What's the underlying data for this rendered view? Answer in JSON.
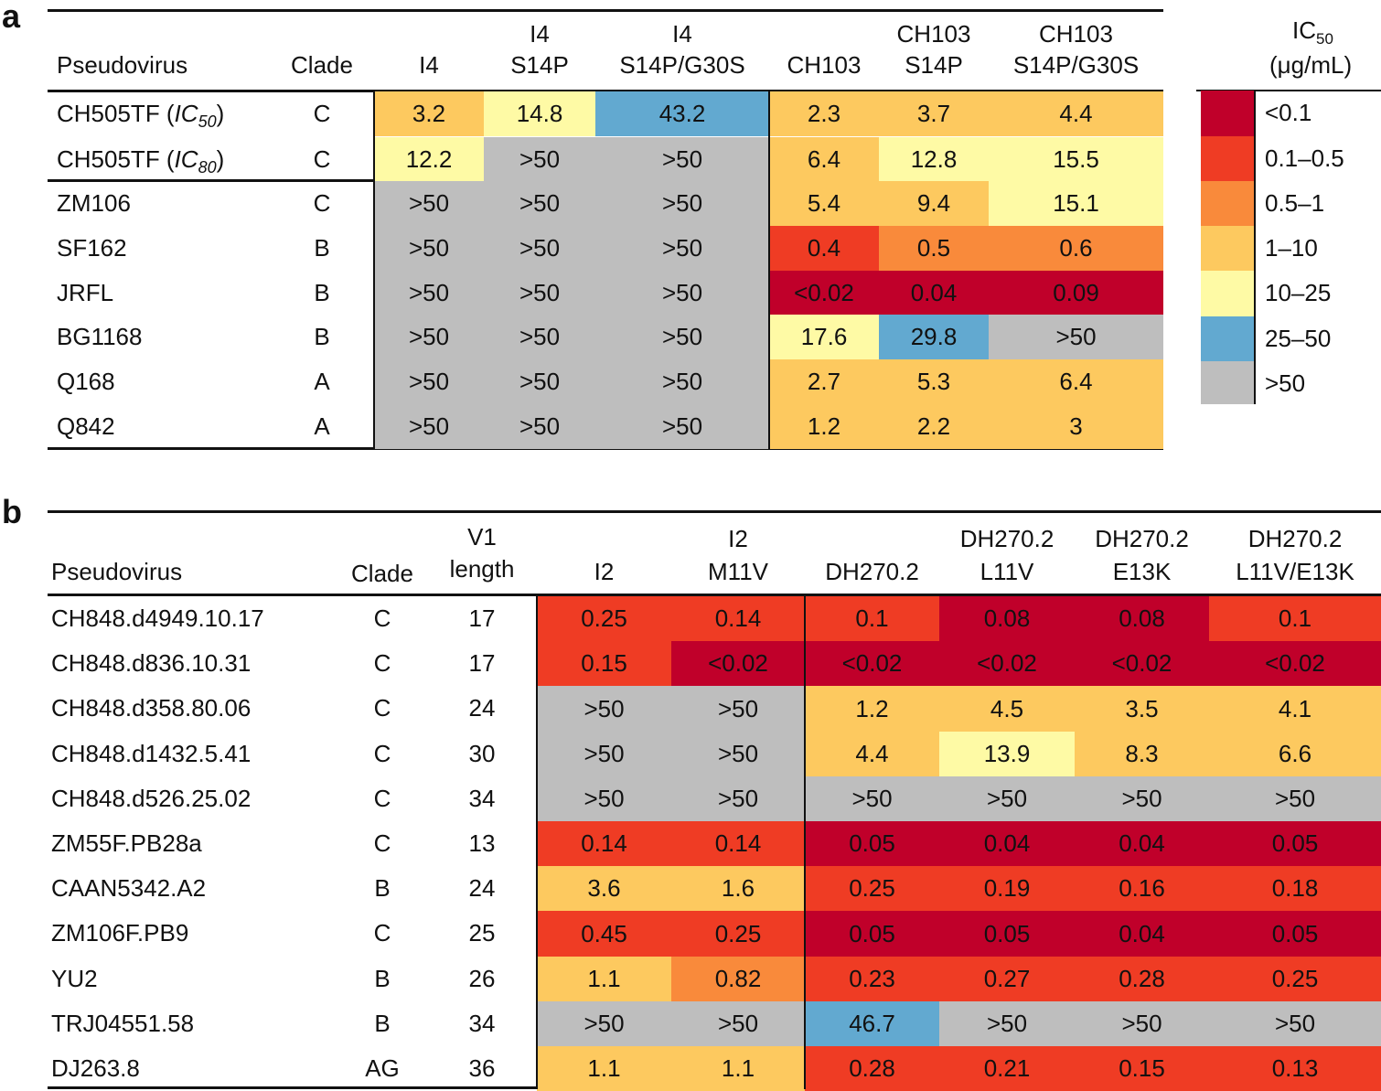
{
  "colors": {
    "<0.1": "#c0002a",
    "0.1–0.5": "#ef3c24",
    "0.5–1": "#f98a3b",
    "1–10": "#fdc95f",
    "10–25": "#fefaa5",
    "25–50": "#62a9d0",
    ">50": "#bebebe"
  },
  "panel_a": {
    "label": "a",
    "headers": {
      "pseudovirus": "Pseudovirus",
      "clade": "Clade",
      "antibodies": [
        {
          "line1": "",
          "line2": "I4"
        },
        {
          "line1": "I4",
          "line2": "S14P"
        },
        {
          "line1": "I4",
          "line2": "S14P/G30S"
        },
        {
          "line1": "",
          "line2": "CH103"
        },
        {
          "line1": "CH103",
          "line2": "S14P"
        },
        {
          "line1": "CH103",
          "line2": "S14P/G30S"
        }
      ]
    },
    "rows": [
      {
        "name": "CH505TF (",
        "name_italic": "IC",
        "name_sub": "50",
        "name_end": ")",
        "clade": "C",
        "values": [
          "3.2",
          "14.8",
          "43.2",
          "2.3",
          "3.7",
          "4.4"
        ],
        "bins": [
          "1–10",
          "10–25",
          "25–50",
          "1–10",
          "1–10",
          "1–10"
        ]
      },
      {
        "name": "CH505TF (",
        "name_italic": "IC",
        "name_sub": "80",
        "name_end": ")",
        "clade": "C",
        "values": [
          "12.2",
          ">50",
          ">50",
          "6.4",
          "12.8",
          "15.5"
        ],
        "bins": [
          "10–25",
          ">50",
          ">50",
          "1–10",
          "10–25",
          "10–25"
        ]
      },
      {
        "name": "ZM106",
        "clade": "C",
        "values": [
          ">50",
          ">50",
          ">50",
          "5.4",
          "9.4",
          "15.1"
        ],
        "bins": [
          ">50",
          ">50",
          ">50",
          "1–10",
          "1–10",
          "10–25"
        ]
      },
      {
        "name": "SF162",
        "clade": "B",
        "values": [
          ">50",
          ">50",
          ">50",
          "0.4",
          "0.5",
          "0.6"
        ],
        "bins": [
          ">50",
          ">50",
          ">50",
          "0.1–0.5",
          "0.5–1",
          "0.5–1"
        ]
      },
      {
        "name": "JRFL",
        "clade": "B",
        "values": [
          ">50",
          ">50",
          ">50",
          "<0.02",
          "0.04",
          "0.09"
        ],
        "bins": [
          ">50",
          ">50",
          ">50",
          "<0.1",
          "<0.1",
          "<0.1"
        ]
      },
      {
        "name": "BG1168",
        "clade": "B",
        "values": [
          ">50",
          ">50",
          ">50",
          "17.6",
          "29.8",
          ">50"
        ],
        "bins": [
          ">50",
          ">50",
          ">50",
          "10–25",
          "25–50",
          ">50"
        ]
      },
      {
        "name": "Q168",
        "clade": "A",
        "values": [
          ">50",
          ">50",
          ">50",
          "2.7",
          "5.3",
          "6.4"
        ],
        "bins": [
          ">50",
          ">50",
          ">50",
          "1–10",
          "1–10",
          "1–10"
        ]
      },
      {
        "name": "Q842",
        "clade": "A",
        "values": [
          ">50",
          ">50",
          ">50",
          "1.2",
          "2.2",
          "3"
        ],
        "bins": [
          ">50",
          ">50",
          ">50",
          "1–10",
          "1–10",
          "1–10"
        ]
      }
    ]
  },
  "legend": {
    "title_main": "IC",
    "title_sub": "50",
    "title_unit": "(μg/mL)",
    "items": [
      "<0.1",
      "0.1–0.5",
      "0.5–1",
      "1–10",
      "10–25",
      "25–50",
      ">50"
    ]
  },
  "panel_b": {
    "label": "b",
    "headers": {
      "pseudovirus": "Pseudovirus",
      "clade": "Clade",
      "v1_line1": "V1",
      "v1_line2": "length",
      "antibodies": [
        {
          "line1": "",
          "line2": "I2"
        },
        {
          "line1": "I2",
          "line2": "M11V"
        },
        {
          "line1": "",
          "line2": "DH270.2"
        },
        {
          "line1": "DH270.2",
          "line2": "L11V"
        },
        {
          "line1": "DH270.2",
          "line2": "E13K"
        },
        {
          "line1": "DH270.2",
          "line2": "L11V/E13K"
        }
      ]
    },
    "rows": [
      {
        "name": "CH848.d4949.10.17",
        "clade": "C",
        "v1": "17",
        "values": [
          "0.25",
          "0.14",
          "0.1",
          "0.08",
          "0.08",
          "0.1"
        ],
        "bins": [
          "0.1–0.5",
          "0.1–0.5",
          "0.1–0.5",
          "<0.1",
          "<0.1",
          "0.1–0.5"
        ]
      },
      {
        "name": "CH848.d836.10.31",
        "clade": "C",
        "v1": "17",
        "values": [
          "0.15",
          "<0.02",
          "<0.02",
          "<0.02",
          "<0.02",
          "<0.02"
        ],
        "bins": [
          "0.1–0.5",
          "<0.1",
          "<0.1",
          "<0.1",
          "<0.1",
          "<0.1"
        ]
      },
      {
        "name": "CH848.d358.80.06",
        "clade": "C",
        "v1": "24",
        "values": [
          ">50",
          ">50",
          "1.2",
          "4.5",
          "3.5",
          "4.1"
        ],
        "bins": [
          ">50",
          ">50",
          "1–10",
          "1–10",
          "1–10",
          "1–10"
        ]
      },
      {
        "name": "CH848.d1432.5.41",
        "clade": "C",
        "v1": "30",
        "values": [
          ">50",
          ">50",
          "4.4",
          "13.9",
          "8.3",
          "6.6"
        ],
        "bins": [
          ">50",
          ">50",
          "1–10",
          "10–25",
          "1–10",
          "1–10"
        ]
      },
      {
        "name": "CH848.d526.25.02",
        "clade": "C",
        "v1": "34",
        "values": [
          ">50",
          ">50",
          ">50",
          ">50",
          ">50",
          ">50"
        ],
        "bins": [
          ">50",
          ">50",
          ">50",
          ">50",
          ">50",
          ">50"
        ]
      },
      {
        "name": "ZM55F.PB28a",
        "clade": "C",
        "v1": "13",
        "values": [
          "0.14",
          "0.14",
          "0.05",
          "0.04",
          "0.04",
          "0.05"
        ],
        "bins": [
          "0.1–0.5",
          "0.1–0.5",
          "<0.1",
          "<0.1",
          "<0.1",
          "<0.1"
        ]
      },
      {
        "name": "CAAN5342.A2",
        "clade": "B",
        "v1": "24",
        "values": [
          "3.6",
          "1.6",
          "0.25",
          "0.19",
          "0.16",
          "0.18"
        ],
        "bins": [
          "1–10",
          "1–10",
          "0.1–0.5",
          "0.1–0.5",
          "0.1–0.5",
          "0.1–0.5"
        ]
      },
      {
        "name": "ZM106F.PB9",
        "clade": "C",
        "v1": "25",
        "values": [
          "0.45",
          "0.25",
          "0.05",
          "0.05",
          "0.04",
          "0.05"
        ],
        "bins": [
          "0.1–0.5",
          "0.1–0.5",
          "<0.1",
          "<0.1",
          "<0.1",
          "<0.1"
        ]
      },
      {
        "name": "YU2",
        "clade": "B",
        "v1": "26",
        "values": [
          "1.1",
          "0.82",
          "0.23",
          "0.27",
          "0.28",
          "0.25"
        ],
        "bins": [
          "1–10",
          "0.5–1",
          "0.1–0.5",
          "0.1–0.5",
          "0.1–0.5",
          "0.1–0.5"
        ]
      },
      {
        "name": "TRJ04551.58",
        "clade": "B",
        "v1": "34",
        "values": [
          ">50",
          ">50",
          "46.7",
          ">50",
          ">50",
          ">50"
        ],
        "bins": [
          ">50",
          ">50",
          "25–50",
          ">50",
          ">50",
          ">50"
        ]
      },
      {
        "name": "DJ263.8",
        "clade": "AG",
        "v1": "36",
        "values": [
          "1.1",
          "1.1",
          "0.28",
          "0.21",
          "0.15",
          "0.13"
        ],
        "bins": [
          "1–10",
          "1–10",
          "0.1–0.5",
          "0.1–0.5",
          "0.1–0.5",
          "0.1–0.5"
        ]
      }
    ]
  }
}
